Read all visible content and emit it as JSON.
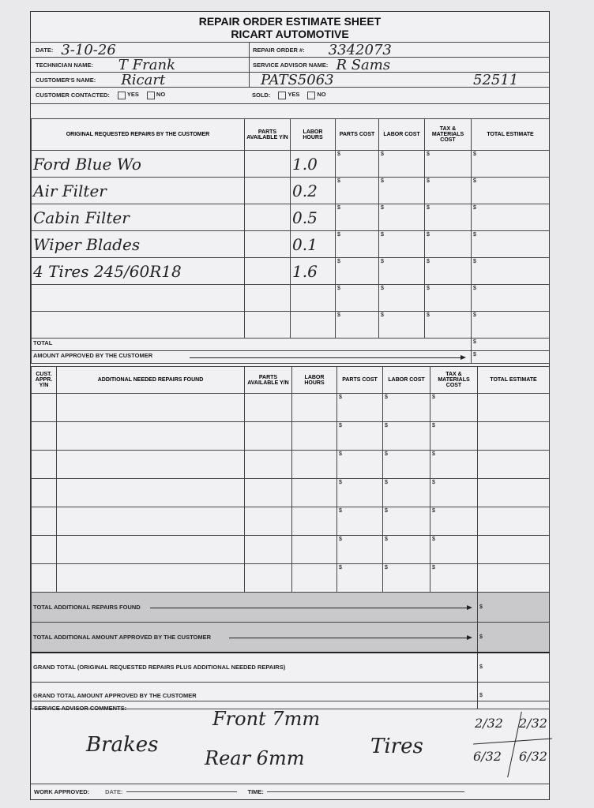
{
  "title": "REPAIR ORDER ESTIMATE SHEET",
  "company": "RICART AUTOMOTIVE",
  "info": {
    "date_label": "DATE:",
    "date_value": "3-10-26",
    "repair_order_label": "REPAIR ORDER #:",
    "repair_order_value": "3342073",
    "technician_label": "TECHNICIAN NAME:",
    "technician_value": "T Frank",
    "advisor_label": "SERVICE ADVISOR NAME:",
    "advisor_value": "R Sams",
    "customer_label": "CUSTOMER'S NAME:",
    "customer_value": "Ricart",
    "customer_extra_1": "PATS5063",
    "customer_extra_2": "52511",
    "contacted_label": "CUSTOMER CONTACTED:",
    "sold_label": "SOLD:",
    "yes": "YES",
    "no": "NO"
  },
  "table1": {
    "headers": [
      "ORIGINAL REQUESTED REPAIRS BY THE CUSTOMER",
      "PARTS AVAILABLE Y/N",
      "LABOR HOURS",
      "PARTS COST",
      "LABOR COST",
      "TAX & MATERIALS COST",
      "TOTAL ESTIMATE"
    ],
    "rows": [
      {
        "repair": "Ford Blue Wo",
        "hours": "1.0"
      },
      {
        "repair": "Air Filter",
        "hours": "0.2"
      },
      {
        "repair": "Cabin Filter",
        "hours": "0.5"
      },
      {
        "repair": "Wiper Blades",
        "hours": "0.1"
      },
      {
        "repair": "4 Tires 245/60R18",
        "hours": "1.6"
      },
      {
        "repair": "",
        "hours": ""
      },
      {
        "repair": "",
        "hours": ""
      }
    ],
    "total_label": "TOTAL",
    "approved_label": "AMOUNT APPROVED BY THE CUSTOMER",
    "currency": "$"
  },
  "table2": {
    "headers": [
      "CUST. APPR. Y/N",
      "ADDITIONAL NEEDED REPAIRS FOUND",
      "PARTS AVAILABLE Y/N",
      "LABOR HOURS",
      "PARTS COST",
      "LABOR COST",
      "TAX & MATERIALS COST",
      "TOTAL ESTIMATE"
    ],
    "total_additional_label": "TOTAL ADDITIONAL REPAIRS FOUND",
    "total_additional_approved_label": "TOTAL ADDITIONAL AMOUNT APPROVED BY THE CUSTOMER",
    "grand_total_label": "GRAND TOTAL (Original requested repairs plus additional needed repairs)",
    "grand_total_approved_label": "GRAND TOTAL AMOUNT APPROVED BY THE CUSTOMER"
  },
  "comments": {
    "label": "SERVICE ADVISOR COMMENTS:",
    "brakes": "Brakes",
    "front": "Front 7mm",
    "rear": "Rear 6mm",
    "tires": "Tires",
    "tire_tl": "2/32",
    "tire_tr": "2/32",
    "tire_bl": "6/32",
    "tire_br": "6/32"
  },
  "footer": {
    "work_approved": "WORK APPROVED:",
    "date": "DATE:",
    "time": "TIME:"
  }
}
